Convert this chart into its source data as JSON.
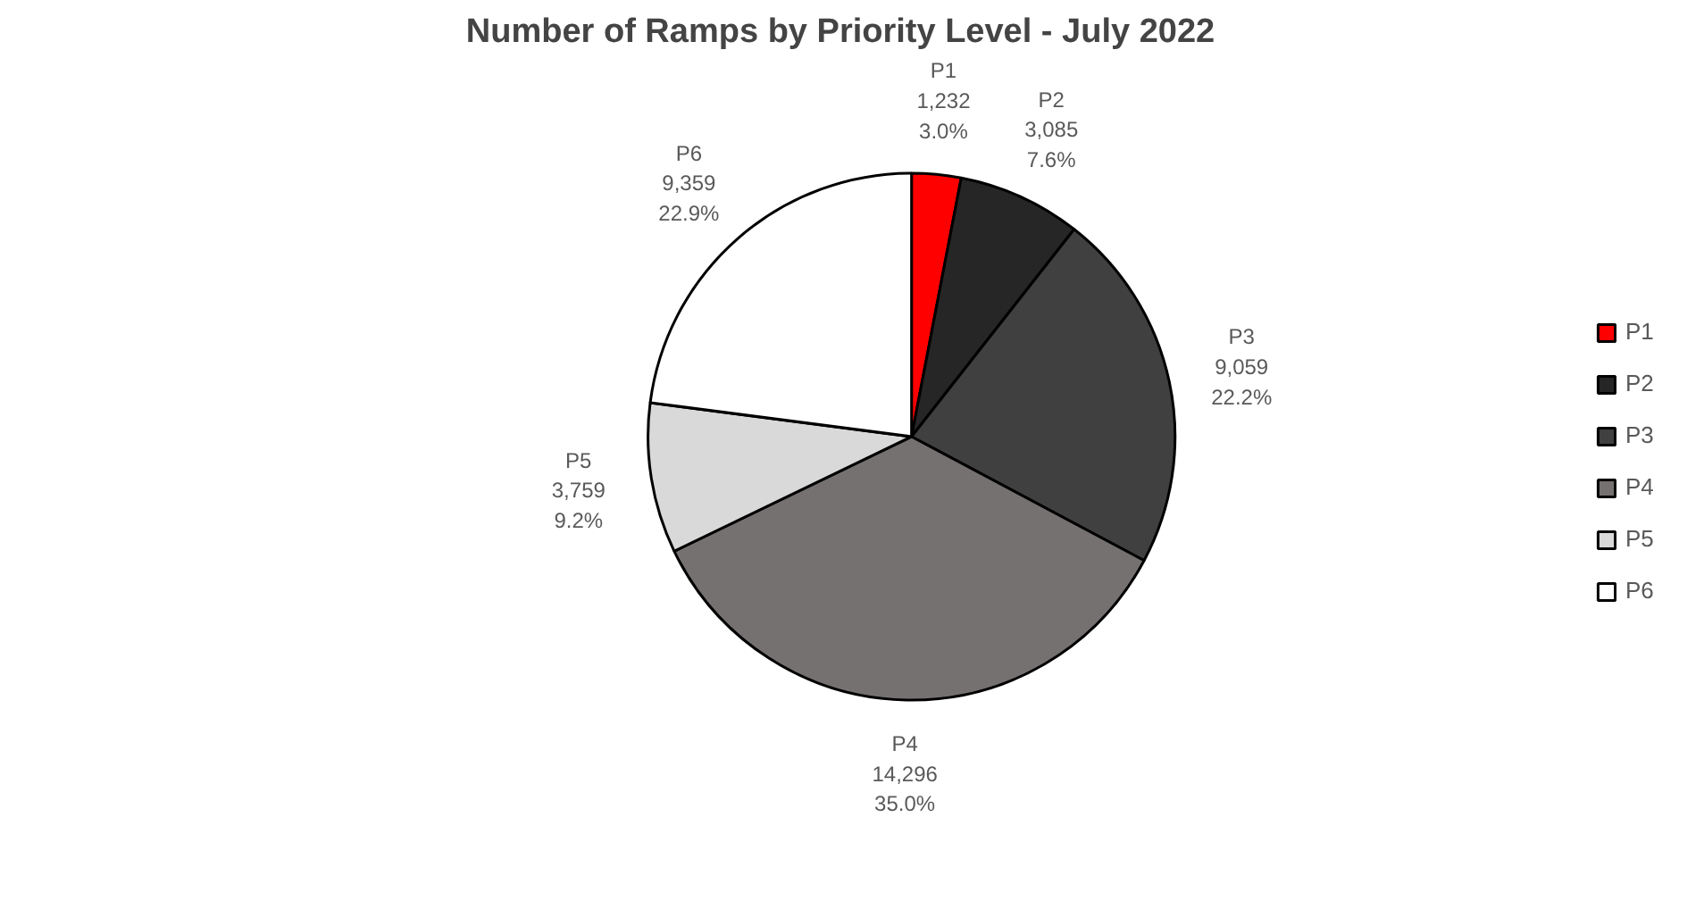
{
  "chart_data": {
    "type": "pie",
    "title": "Number of Ramps by Priority Level - July 2022",
    "categories": [
      "P1",
      "P2",
      "P3",
      "P4",
      "P5",
      "P6"
    ],
    "values": [
      1232,
      3085,
      9059,
      14296,
      3759,
      9359
    ],
    "colors": [
      "#ff0000",
      "#262626",
      "#404040",
      "#767171",
      "#d9d9d9",
      "#ffffff"
    ],
    "value_labels": [
      "1,232\n3.0%",
      "3,085\n7.6%",
      "9,059\n22.2%",
      "14,296\n35.0%",
      "3,759\n9.2%",
      "9,359\n22.9%"
    ],
    "legend": "right"
  }
}
